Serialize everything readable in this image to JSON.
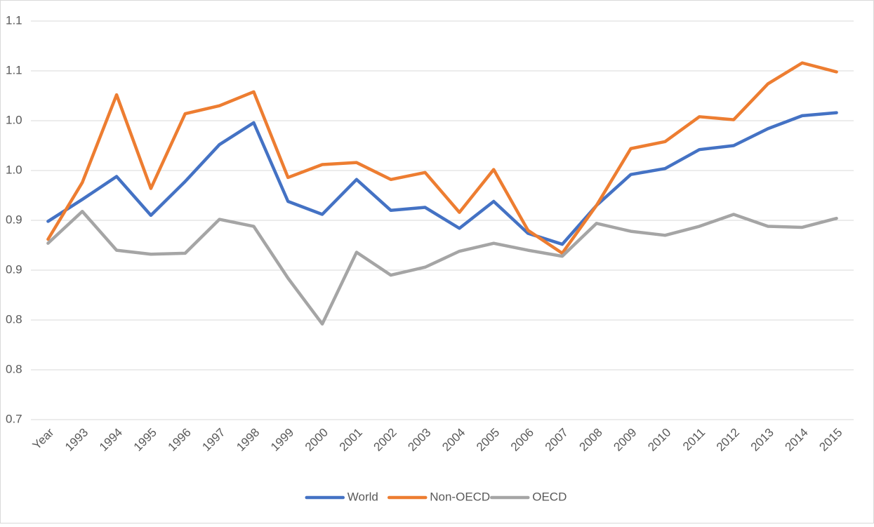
{
  "chart_data": {
    "type": "line",
    "categories": [
      "Year",
      "1993",
      "1994",
      "1995",
      "1996",
      "1997",
      "1998",
      "1999",
      "2000",
      "2001",
      "2002",
      "2003",
      "2004",
      "2005",
      "2006",
      "2007",
      "2008",
      "2009",
      "2010",
      "2011",
      "2012",
      "2013",
      "2014",
      "2015"
    ],
    "series": [
      {
        "name": "World",
        "color": "#4472c4",
        "values": [
          0.899,
          0.921,
          0.944,
          0.905,
          0.939,
          0.976,
          0.998,
          0.919,
          0.906,
          0.941,
          0.91,
          0.913,
          0.892,
          0.919,
          0.887,
          0.876,
          0.915,
          0.946,
          0.952,
          0.971,
          0.975,
          0.992,
          1.005,
          1.008
        ]
      },
      {
        "name": "Non-OECD",
        "color": "#ed7d31",
        "values": [
          0.881,
          0.938,
          1.026,
          0.932,
          1.007,
          1.015,
          1.029,
          0.943,
          0.956,
          0.958,
          0.941,
          0.948,
          0.908,
          0.951,
          0.89,
          0.867,
          0.915,
          0.972,
          0.979,
          1.004,
          1.001,
          1.037,
          1.058,
          1.049
        ]
      },
      {
        "name": "OECD",
        "color": "#a5a5a5",
        "values": [
          0.877,
          0.909,
          0.87,
          0.866,
          0.867,
          0.901,
          0.894,
          0.842,
          0.796,
          0.868,
          0.845,
          0.853,
          0.869,
          0.877,
          0.87,
          0.864,
          0.897,
          0.889,
          0.885,
          0.894,
          0.906,
          0.894,
          0.893,
          0.902
        ]
      }
    ],
    "ylim": [
      0.7,
      1.1
    ],
    "yticks": [
      0.7,
      {
        "value": 0.75,
        "label": "0.8"
      },
      0.8,
      {
        "value": 0.85,
        "label": "0.9"
      },
      0.9,
      {
        "value": 0.95,
        "label": "1.0"
      },
      {
        "value": 1.0,
        "label": "1.0"
      },
      {
        "value": 1.05,
        "label": "1.1"
      },
      1.1
    ],
    "grid": true,
    "legend": "bottom"
  }
}
